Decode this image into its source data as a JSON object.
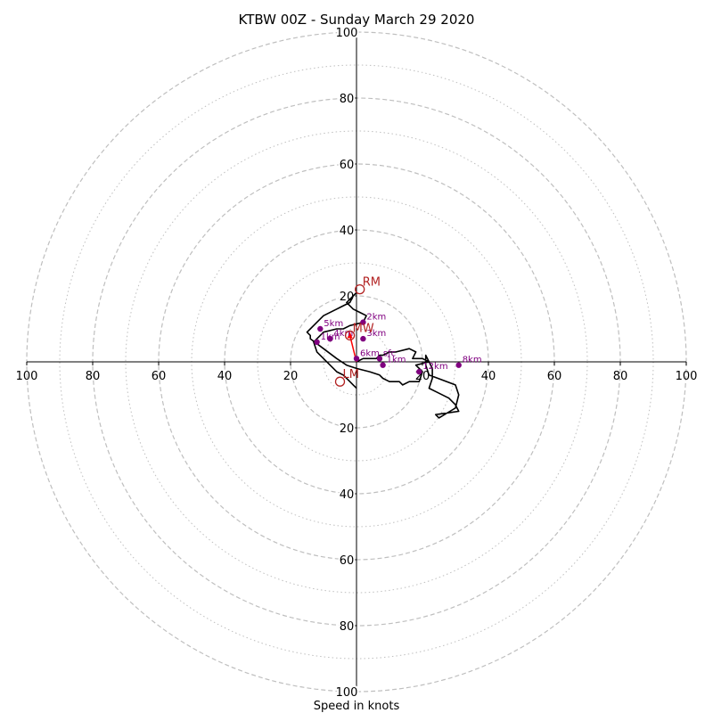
{
  "chart_data": {
    "type": "line",
    "title": "KTBW 00Z - Sunday March 29 2020",
    "xlabel": "Speed in knots",
    "ylabel": "",
    "xlim": [
      -100,
      100
    ],
    "ylim": [
      -100,
      100
    ],
    "ring_major": [
      20,
      40,
      60,
      80,
      100
    ],
    "ring_minor": [
      10,
      30,
      50,
      70,
      90
    ],
    "x_ticks": [
      {
        "value": -100,
        "label": "100"
      },
      {
        "value": -80,
        "label": "80"
      },
      {
        "value": -60,
        "label": "60"
      },
      {
        "value": -40,
        "label": "40"
      },
      {
        "value": -20,
        "label": "20"
      },
      {
        "value": 20,
        "label": "20"
      },
      {
        "value": 40,
        "label": "40"
      },
      {
        "value": 60,
        "label": "60"
      },
      {
        "value": 80,
        "label": "80"
      },
      {
        "value": 100,
        "label": "100"
      }
    ],
    "y_ticks": [
      {
        "value": 100,
        "label": "100"
      },
      {
        "value": 80,
        "label": "80"
      },
      {
        "value": 60,
        "label": "60"
      },
      {
        "value": 40,
        "label": "40"
      },
      {
        "value": 20,
        "label": "20"
      },
      {
        "value": -20,
        "label": "20"
      },
      {
        "value": -40,
        "label": "40"
      },
      {
        "value": -60,
        "label": "60"
      },
      {
        "value": -80,
        "label": "80"
      },
      {
        "value": -100,
        "label": "100"
      }
    ],
    "grid": true,
    "colors": {
      "trace": "#000000",
      "markers": "#800080",
      "storm_motion": "#b22222",
      "mean_wind_vector": "#ff0000",
      "grid": "#bfbfbf",
      "axes": "#000000"
    },
    "hodograph": {
      "u": [
        0,
        2,
        6,
        7,
        8,
        10,
        12,
        16,
        18,
        17,
        20,
        22,
        23,
        23,
        22,
        24,
        28,
        30,
        31,
        24,
        25,
        30,
        31,
        30,
        22,
        21,
        21,
        22,
        18,
        20,
        19,
        16,
        14,
        13,
        10,
        8,
        7,
        4,
        0,
        -3,
        -6,
        -10,
        -14,
        -14,
        -15,
        -14,
        -12,
        -10,
        -6,
        -2,
        -1,
        0,
        -3,
        -1,
        1,
        3,
        2,
        -2,
        -4,
        -6,
        -10,
        -13,
        -12,
        -10,
        -8,
        -6,
        -4,
        -2,
        -1,
        0
      ],
      "v": [
        0,
        1,
        1,
        2,
        2,
        3,
        3,
        4,
        3,
        1,
        1,
        0,
        -2,
        -5,
        -8,
        -9,
        -11,
        -13,
        -15,
        -16,
        -17,
        -14,
        -10,
        -7,
        -4,
        -1,
        2,
        0,
        -1,
        -3,
        -6,
        -6,
        -7,
        -6,
        -6,
        -5,
        -4,
        -3,
        -2,
        -1,
        1,
        4,
        7,
        8,
        9,
        10,
        12,
        14,
        16,
        18,
        20,
        21,
        18,
        16,
        15,
        14,
        12,
        11,
        10,
        10,
        9,
        6,
        3,
        1,
        -1,
        -3,
        -4,
        -6,
        -7,
        -8
      ]
    },
    "height_markers": [
      {
        "label": "sfc",
        "u": 7,
        "v": 1
      },
      {
        "label": "1km",
        "u": 8,
        "v": -1
      },
      {
        "label": "2km",
        "u": 2,
        "v": 12
      },
      {
        "label": "3km",
        "u": 2,
        "v": 7
      },
      {
        "label": "4km",
        "u": -8,
        "v": 7
      },
      {
        "label": "5km",
        "u": -11,
        "v": 10
      },
      {
        "label": "6km",
        "u": 0,
        "v": 1
      },
      {
        "label": "8km",
        "u": 31,
        "v": -1
      },
      {
        "label": "12km",
        "u": 19,
        "v": -3
      },
      {
        "label": "1km",
        "u": -12,
        "v": 6
      }
    ],
    "storm_motion": [
      {
        "label": "RM",
        "u": 1,
        "v": 22
      },
      {
        "label": "LM",
        "u": -5,
        "v": -6
      },
      {
        "label": "MW",
        "u": -2,
        "v": 8
      }
    ],
    "mean_wind_vector": {
      "u": -2,
      "v": 8
    }
  }
}
